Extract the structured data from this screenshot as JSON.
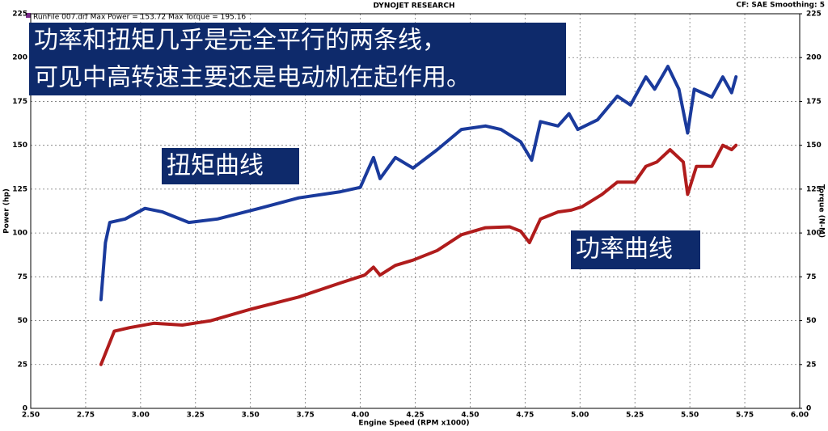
{
  "chart_data": {
    "type": "line",
    "title": "DYNOJET RESEARCH",
    "subtitle": "RunFile  007.drf Max Power = 153.72    Max Torque = 195.16",
    "settings_label": "CF: SAE  Smoothing: 5",
    "x_label": "Engine Speed (RPM x1000)",
    "y_label": "Power (hp)",
    "y2_label": "Torque (N-M)",
    "annotations": [
      "功率和扭矩几乎是完全平行的两条线，",
      "可见中高转速主要还是电动机在起作用。",
      "扭矩曲线",
      "功率曲线"
    ],
    "xlim": [
      2.5,
      6.0
    ],
    "xticks": [
      {
        "value": 2.5,
        "label": "2.50"
      },
      {
        "value": 2.75,
        "label": "2.75"
      },
      {
        "value": 3.0,
        "label": "3.00"
      },
      {
        "value": 3.25,
        "label": "3.25"
      },
      {
        "value": 3.5,
        "label": "3.50"
      },
      {
        "value": 3.75,
        "label": "3.75"
      },
      {
        "value": 4.0,
        "label": "4.00"
      },
      {
        "value": 4.25,
        "label": "4.25"
      },
      {
        "value": 4.5,
        "label": "4.50"
      },
      {
        "value": 4.75,
        "label": "4.75"
      },
      {
        "value": 5.0,
        "label": "5.00"
      },
      {
        "value": 5.25,
        "label": "5.25"
      },
      {
        "value": 5.5,
        "label": "5.50"
      },
      {
        "value": 5.75,
        "label": "5.75"
      },
      {
        "value": 6.0,
        "label": "6.00"
      }
    ],
    "ylim": [
      0,
      225
    ],
    "yticks": [
      0,
      25,
      50,
      75,
      100,
      125,
      150,
      175,
      200,
      225
    ],
    "y2lim": [
      0,
      225
    ],
    "y2ticks": [
      0,
      25,
      50,
      75,
      100,
      125,
      150,
      175,
      200,
      225
    ],
    "grid": true,
    "series": [
      {
        "name": "Power",
        "color": "#b01c1c",
        "x": [
          2.82,
          2.88,
          2.95,
          3.06,
          3.19,
          3.32,
          3.5,
          3.72,
          3.91,
          4.02,
          4.06,
          4.09,
          4.16,
          4.24,
          4.35,
          4.46,
          4.57,
          4.68,
          4.73,
          4.77,
          4.82,
          4.9,
          4.96,
          5.01,
          5.1,
          5.17,
          5.25,
          5.3,
          5.35,
          5.41,
          5.47,
          5.49,
          5.53,
          5.6,
          5.65,
          5.69,
          5.71
        ],
        "values": [
          25,
          44,
          46,
          48.5,
          47.5,
          50,
          56.5,
          63.5,
          71.5,
          76,
          80.5,
          76,
          81.5,
          84.5,
          90,
          99,
          103,
          103.5,
          101,
          94.5,
          108,
          112,
          113,
          115,
          122,
          129,
          129,
          138,
          140.5,
          147.5,
          140.5,
          122,
          138,
          138,
          150,
          147.5,
          150
        ]
      },
      {
        "name": "Torque",
        "color": "#1a3a9c",
        "axis": "y2",
        "x": [
          2.82,
          2.84,
          2.86,
          2.93,
          3.02,
          3.1,
          3.22,
          3.35,
          3.54,
          3.72,
          3.91,
          4.0,
          4.06,
          4.09,
          4.16,
          4.24,
          4.35,
          4.46,
          4.57,
          4.64,
          4.73,
          4.78,
          4.82,
          4.9,
          4.95,
          4.99,
          5.08,
          5.17,
          5.23,
          5.3,
          5.34,
          5.4,
          5.45,
          5.49,
          5.52,
          5.6,
          5.65,
          5.69,
          5.71
        ],
        "values": [
          62,
          94.5,
          106,
          108,
          114,
          112,
          106,
          108,
          114,
          120,
          123.5,
          126,
          143,
          131,
          143,
          137,
          147.5,
          159,
          161,
          159,
          152,
          141.5,
          163.5,
          161,
          168,
          159,
          164.5,
          178,
          173,
          189,
          182,
          195,
          182,
          157,
          182,
          177.5,
          189,
          180,
          189
        ]
      }
    ]
  }
}
